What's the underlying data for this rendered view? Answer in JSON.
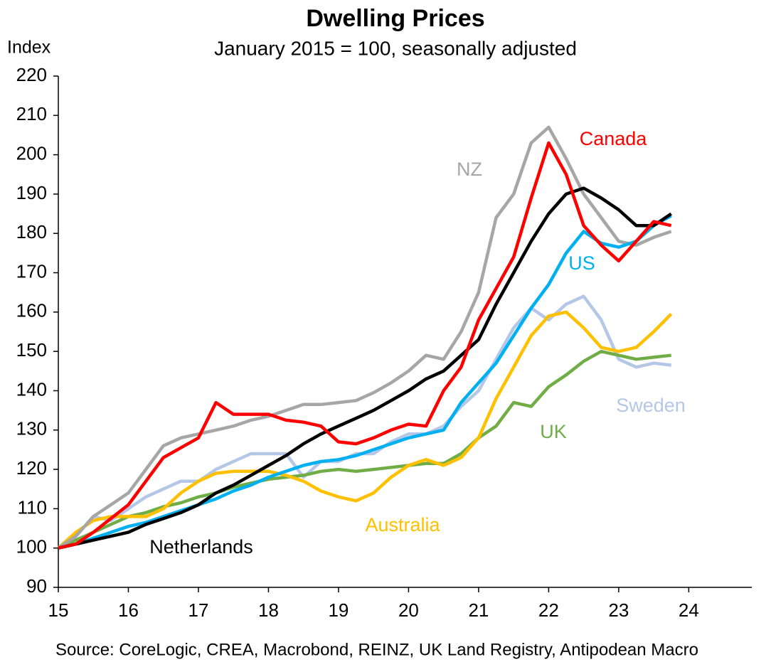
{
  "chart_data": {
    "type": "line",
    "title": "Dwelling Prices",
    "subtitle": "January 2015 = 100, seasonally adjusted",
    "y_label": "Index",
    "source": "Source: CoreLogic, CREA, Macrobond, REINZ, UK Land Registry, Antipodean Macro",
    "x": [
      15,
      15.25,
      15.5,
      15.75,
      16,
      16.25,
      16.5,
      16.75,
      17,
      17.25,
      17.5,
      17.75,
      18,
      18.25,
      18.5,
      18.75,
      19,
      19.25,
      19.5,
      19.75,
      20,
      20.25,
      20.5,
      20.75,
      21,
      21.25,
      21.5,
      21.75,
      22,
      22.25,
      22.5,
      22.75,
      23,
      23.25,
      23.5,
      23.75
    ],
    "xlim": [
      15,
      24.9
    ],
    "xticks": [
      15,
      16,
      17,
      18,
      19,
      20,
      21,
      22,
      23,
      24
    ],
    "ylim": [
      90,
      220
    ],
    "yticks": [
      90,
      100,
      110,
      120,
      130,
      140,
      150,
      160,
      170,
      180,
      190,
      200,
      210,
      220
    ],
    "series": [
      {
        "name": "Sweden",
        "color": "#b4c7e7",
        "values": [
          100,
          103,
          108,
          107,
          110,
          113,
          115,
          117,
          117,
          120,
          122,
          124,
          124,
          124,
          118,
          122,
          122,
          124,
          124,
          127,
          129,
          129,
          131,
          136,
          140,
          148,
          156,
          161,
          158,
          162,
          164,
          158,
          148,
          146,
          147,
          146.5
        ]
      },
      {
        "name": "UK",
        "color": "#70ad47",
        "values": [
          100,
          102,
          104,
          106,
          108,
          109,
          110.5,
          111.5,
          113,
          114,
          115.5,
          116.5,
          117.5,
          118,
          118.5,
          119.5,
          120,
          119.5,
          120,
          120.5,
          121,
          121.5,
          121.5,
          124,
          128,
          131,
          137,
          136,
          141,
          144,
          147.5,
          150,
          149,
          148,
          148.5,
          149
        ]
      },
      {
        "name": "Australia",
        "color": "#ffc000",
        "values": [
          100,
          104,
          107,
          108,
          108,
          108,
          110,
          114,
          117,
          119,
          119.5,
          119.5,
          119.5,
          118.5,
          117,
          114.5,
          113,
          112,
          114,
          118,
          121,
          122.5,
          121,
          123,
          128,
          138,
          146,
          154,
          159,
          160,
          156,
          151,
          150,
          151,
          155,
          159.5
        ]
      },
      {
        "name": "NZ",
        "color": "#a6a6a6",
        "values": [
          100,
          103,
          108,
          111,
          114,
          120,
          126,
          128,
          129,
          130,
          131,
          132.5,
          133.5,
          135,
          136.5,
          136.5,
          137,
          137.5,
          139.5,
          142,
          145,
          149,
          148,
          155,
          165,
          184,
          190,
          203,
          207,
          199,
          190,
          184,
          178,
          177,
          179,
          180.5
        ]
      },
      {
        "name": "US",
        "color": "#00b0f0",
        "values": [
          100,
          101,
          102.5,
          104,
          105.5,
          106.5,
          108,
          109.5,
          111,
          112.5,
          114.5,
          116,
          118,
          119.5,
          121,
          122,
          122.5,
          123.5,
          125,
          126.5,
          128,
          129,
          130,
          137,
          142,
          147,
          154,
          161,
          167,
          175,
          180.5,
          177.5,
          176.5,
          178,
          182,
          184.5
        ]
      },
      {
        "name": "Netherlands",
        "color": "#000000",
        "values": [
          100,
          101,
          102,
          103,
          104,
          106,
          107.5,
          109,
          111,
          114,
          116,
          118.5,
          121,
          123.5,
          126.5,
          129,
          131,
          133,
          135,
          137.5,
          140,
          143,
          145,
          149,
          153,
          162,
          170,
          178,
          185,
          190,
          191.5,
          189,
          186,
          182,
          182,
          185
        ]
      },
      {
        "name": "Canada",
        "color": "#ff0000",
        "values": [
          100,
          101,
          104,
          107.5,
          111,
          117,
          123,
          125.5,
          128,
          137,
          134,
          134,
          134,
          132.5,
          132,
          131,
          127,
          126.5,
          128,
          130,
          131.5,
          131,
          140,
          146,
          158,
          166,
          174,
          189,
          203,
          195,
          182,
          177,
          173,
          178,
          183,
          182
        ]
      }
    ]
  }
}
